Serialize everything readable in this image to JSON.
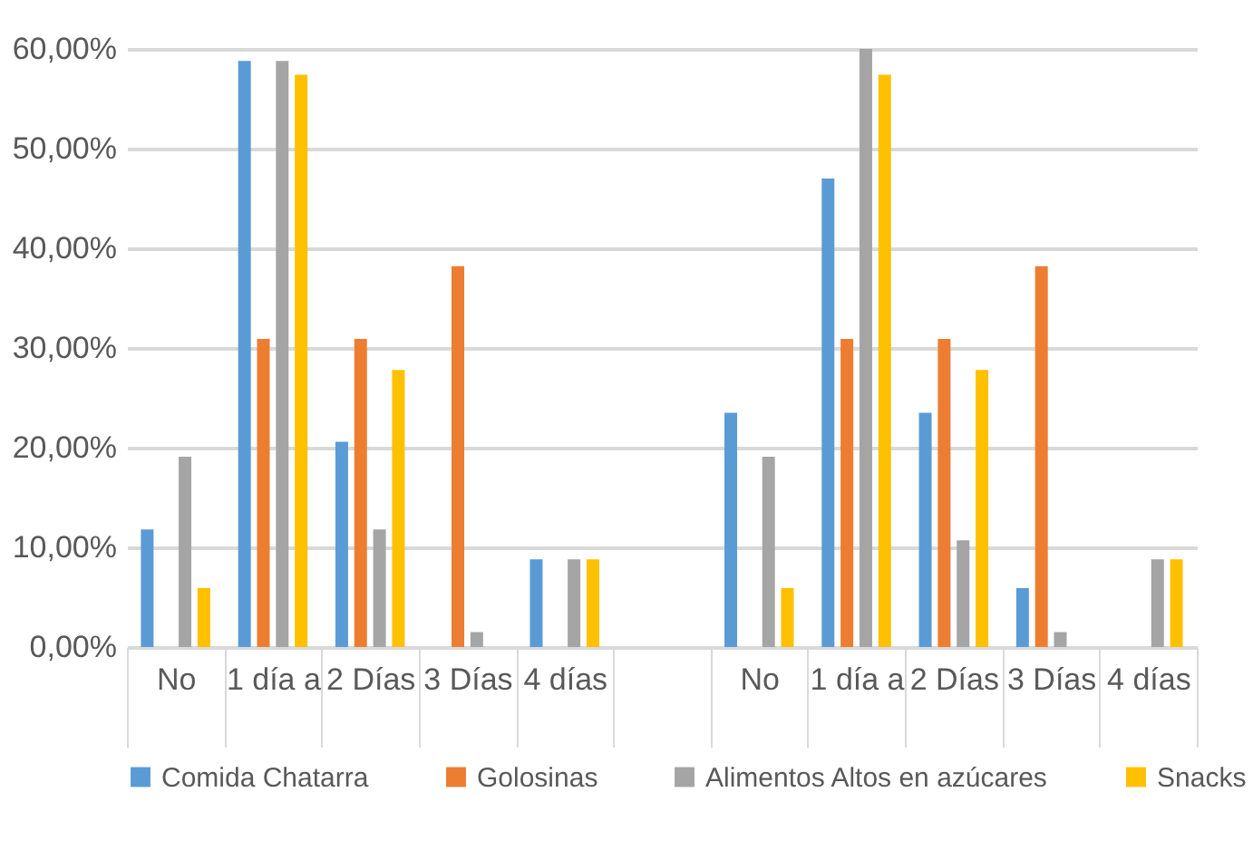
{
  "chart_data": {
    "type": "bar",
    "categories": [
      "No",
      "1 día a",
      "2 Días",
      "3 Días",
      "4 días",
      null,
      "No",
      "1 día a",
      "2 Días",
      "3 Días",
      "4 días"
    ],
    "series": [
      {
        "name": "Comida Chatarra",
        "color": "#5b9bd5",
        "values": [
          11.8,
          58.8,
          20.6,
          0,
          8.8,
          null,
          23.5,
          47,
          23.5,
          5.9,
          0
        ]
      },
      {
        "name": "Golosinas",
        "color": "#ed7d31",
        "values": [
          0,
          30.9,
          30.9,
          38.2,
          0,
          null,
          0,
          30.9,
          30.9,
          38.2,
          0
        ]
      },
      {
        "name": "Alimentos Altos en azúcares",
        "color": "#a5a5a5",
        "values": [
          19.1,
          58.8,
          11.8,
          1.5,
          8.8,
          null,
          19.1,
          60,
          10.7,
          1.5,
          8.8
        ]
      },
      {
        "name": "Snacks",
        "color": "#ffc000",
        "values": [
          5.9,
          57.4,
          27.8,
          0,
          8.8,
          null,
          5.9,
          57.4,
          27.8,
          0,
          8.8
        ]
      }
    ],
    "ylim": [
      0,
      60
    ],
    "yticks": [
      {
        "value": 0,
        "label": "0,00%"
      },
      {
        "value": 10,
        "label": "10,00%"
      },
      {
        "value": 20,
        "label": "20,00%"
      },
      {
        "value": 30,
        "label": "30,00%"
      },
      {
        "value": 40,
        "label": "40,00%"
      },
      {
        "value": 50,
        "label": "50,00%"
      },
      {
        "value": 60,
        "label": "60,00%"
      }
    ],
    "grid": "y",
    "legend": "bottom"
  }
}
